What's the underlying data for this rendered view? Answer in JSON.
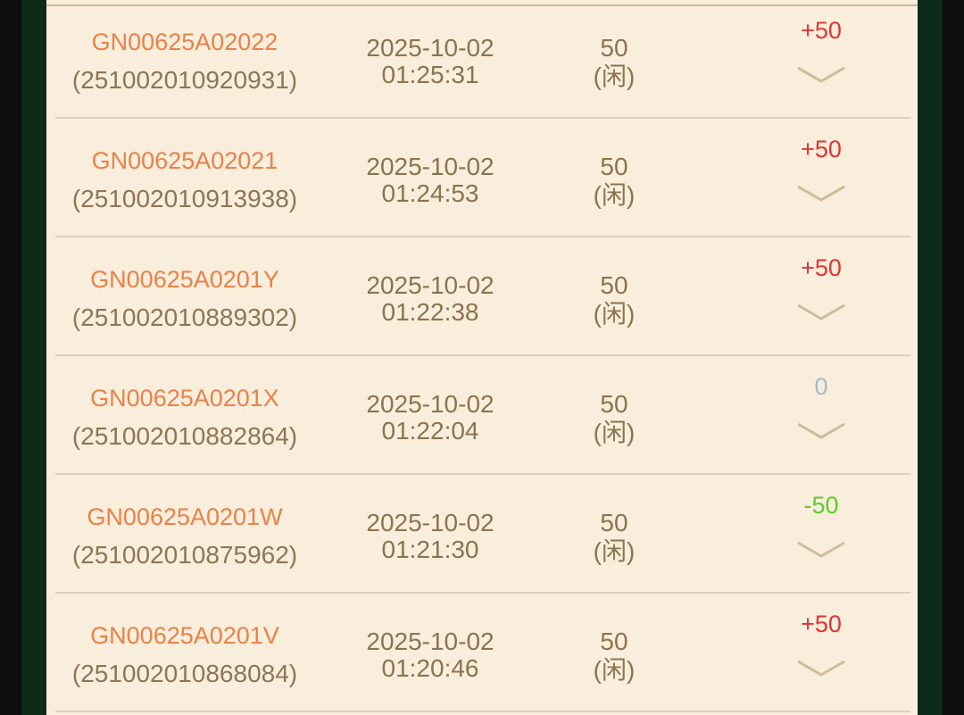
{
  "colors": {
    "win": "#e03535",
    "loss": "#5ccc2a",
    "zero": "#a9b8c8"
  },
  "records": [
    {
      "id": "GN00625A02022",
      "order": "(251002010920931)",
      "date": "2025-10-02",
      "time": "01:25:31",
      "amount": "50",
      "side": "(闲)",
      "result": "+50",
      "status": "win"
    },
    {
      "id": "GN00625A02021",
      "order": "(251002010913938)",
      "date": "2025-10-02",
      "time": "01:24:53",
      "amount": "50",
      "side": "(闲)",
      "result": "+50",
      "status": "win"
    },
    {
      "id": "GN00625A0201Y",
      "order": "(251002010889302)",
      "date": "2025-10-02",
      "time": "01:22:38",
      "amount": "50",
      "side": "(闲)",
      "result": "+50",
      "status": "win"
    },
    {
      "id": "GN00625A0201X",
      "order": "(251002010882864)",
      "date": "2025-10-02",
      "time": "01:22:04",
      "amount": "50",
      "side": "(闲)",
      "result": "0",
      "status": "zero"
    },
    {
      "id": "GN00625A0201W",
      "order": "(251002010875962)",
      "date": "2025-10-02",
      "time": "01:21:30",
      "amount": "50",
      "side": "(闲)",
      "result": "-50",
      "status": "loss"
    },
    {
      "id": "GN00625A0201V",
      "order": "(251002010868084)",
      "date": "2025-10-02",
      "time": "01:20:46",
      "amount": "50",
      "side": "(闲)",
      "result": "+50",
      "status": "win"
    }
  ]
}
